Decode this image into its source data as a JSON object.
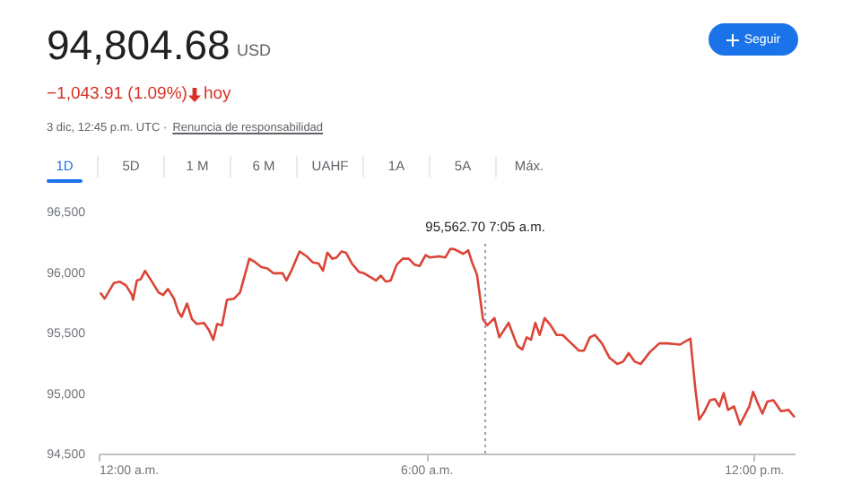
{
  "chart_data": {
    "type": "line",
    "title": "94,804.68",
    "annotations": [
      "USD",
      "−1,043.91 (1.09%)",
      "hoy",
      "3 dic, 12:45 p.m. UTC ·",
      "Renuncia de responsabilidad",
      "Seguir",
      "1D",
      "5D",
      "1 M",
      "6 M",
      "UAHF",
      "1A",
      "5A",
      "Máx."
    ],
    "x": [
      0.03,
      0.11,
      0.28,
      0.39,
      0.5,
      0.61,
      0.63,
      0.7,
      0.77,
      0.85,
      0.99,
      1.1,
      1.18,
      1.27,
      1.38,
      1.46,
      1.52,
      1.62,
      1.71,
      1.8,
      1.93,
      2.02,
      2.1,
      2.17,
      2.26,
      2.35,
      2.48,
      2.59,
      2.76,
      2.87,
      2.98,
      3.09,
      3.2,
      3.37,
      3.44,
      3.53,
      3.68,
      3.81,
      3.92,
      4.03,
      4.11,
      4.19,
      4.28,
      4.36,
      4.45,
      4.53,
      4.64,
      4.77,
      4.86,
      4.97,
      5.08,
      5.17,
      5.26,
      5.35,
      5.46,
      5.57,
      5.68,
      5.79,
      5.88,
      5.99,
      6.07,
      6.24,
      6.35,
      6.44,
      6.51,
      6.68,
      6.77,
      6.84,
      6.93,
      6.99,
      7.04,
      7.12,
      7.25,
      7.34,
      7.51,
      7.67,
      7.76,
      7.84,
      7.92,
      8.0,
      8.08,
      8.17,
      8.28,
      8.39,
      8.5,
      8.66,
      8.8,
      8.89,
      9.0,
      9.09,
      9.22,
      9.36,
      9.5,
      9.61,
      9.71,
      9.82,
      9.93,
      10.1,
      10.27,
      10.43,
      10.65,
      10.84,
      10.93,
      11.0,
      11.09,
      11.2,
      11.29,
      11.37,
      11.45,
      11.53,
      11.64,
      11.75,
      11.84,
      11.92,
      11.99,
      12.08,
      12.16,
      12.25,
      12.36,
      12.41,
      12.5,
      12.64,
      12.75
    ],
    "series": [
      {
        "color": "#db4437",
        "values": [
          95830,
          95780,
          95910,
          95920,
          95890,
          95810,
          95770,
          95930,
          95940,
          96010,
          95910,
          95830,
          95810,
          95860,
          95780,
          95670,
          95630,
          95740,
          95610,
          95570,
          95580,
          95520,
          95440,
          95570,
          95560,
          95770,
          95780,
          95830,
          96110,
          96080,
          96040,
          96030,
          95990,
          95990,
          95930,
          96010,
          96170,
          96130,
          96080,
          96070,
          96010,
          96160,
          96110,
          96120,
          96170,
          96160,
          96070,
          96000,
          95990,
          95960,
          95930,
          95970,
          95920,
          95930,
          96060,
          96110,
          96110,
          96060,
          96050,
          96140,
          96120,
          96130,
          96120,
          96190,
          96190,
          96150,
          96180,
          96080,
          95980,
          95780,
          95610,
          95560,
          95620,
          95460,
          95580,
          95390,
          95360,
          95460,
          95440,
          95580,
          95480,
          95620,
          95560,
          95480,
          95480,
          95410,
          95350,
          95350,
          95460,
          95480,
          95410,
          95290,
          95240,
          95260,
          95330,
          95260,
          95240,
          95340,
          95410,
          95410,
          95400,
          95450,
          95040,
          94780,
          94840,
          94940,
          94950,
          94890,
          95000,
          94860,
          94890,
          94740,
          94820,
          94890,
          95010,
          94910,
          94830,
          94930,
          94940,
          94910,
          94850,
          94860,
          94800
        ]
      }
    ],
    "xlim": [
      0,
      12.75
    ],
    "ylim": [
      94500,
      96500
    ],
    "xticks": [
      {
        "value": 0,
        "label": "12:00 a.m."
      },
      {
        "value": 6,
        "label": "6:00 a.m."
      },
      {
        "value": 12,
        "label": "12:00 p.m."
      }
    ],
    "yticks": [
      {
        "value": 94500,
        "label": "94,500"
      },
      {
        "value": 95000,
        "label": "95,000"
      },
      {
        "value": 95500,
        "label": "95,500"
      },
      {
        "value": 96000,
        "label": "96,000"
      },
      {
        "value": 96500,
        "label": "96,500"
      }
    ],
    "ref_lines": [
      {
        "axis": "x",
        "value": 7.083,
        "label": "95,562.70  7:05 a.m.",
        "color": "#9aa0a6",
        "line_style": "dotted"
      }
    ]
  }
}
